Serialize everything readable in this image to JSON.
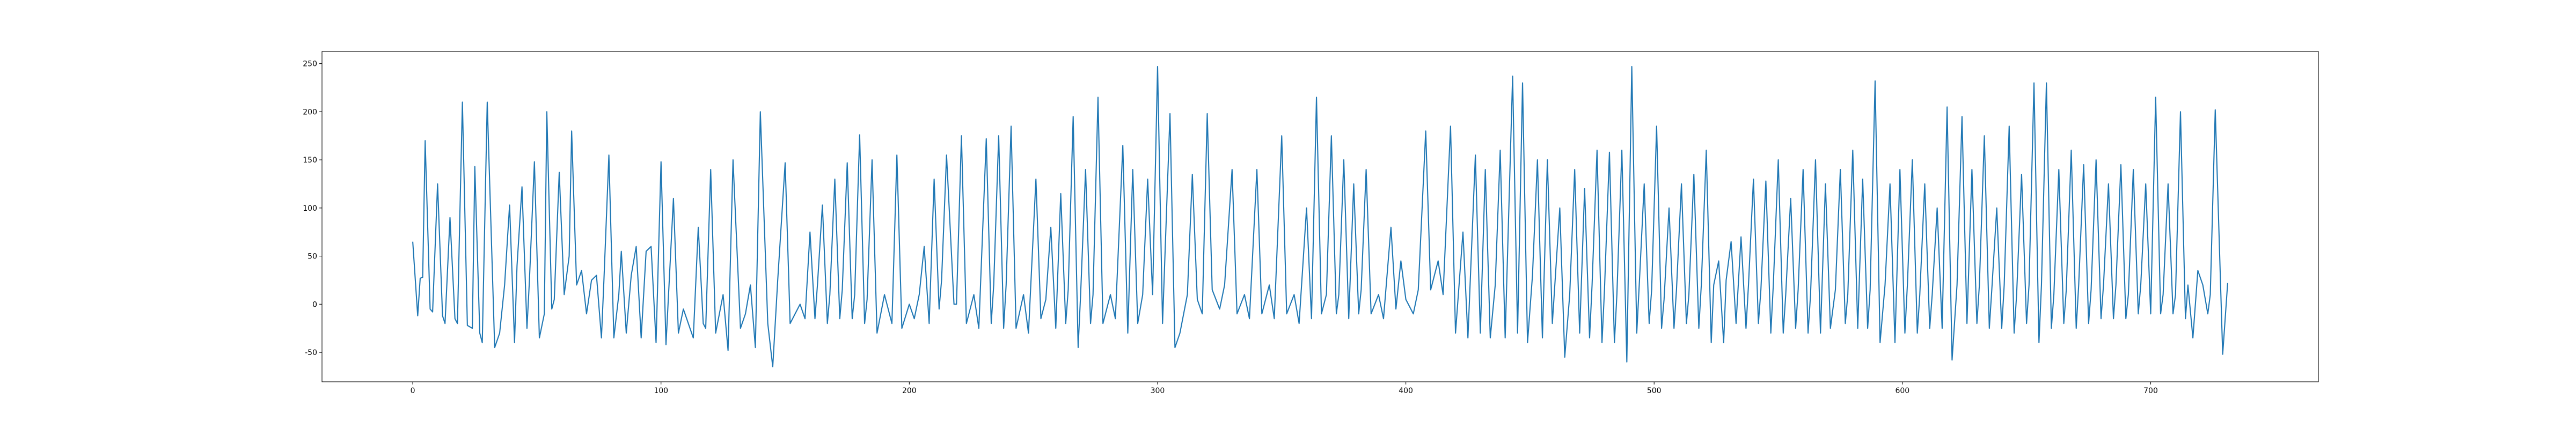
{
  "chart_data": {
    "type": "line",
    "color": "#1f77b4",
    "x": [
      0,
      2,
      3,
      4,
      5,
      7,
      8,
      10,
      12,
      13,
      15,
      17,
      18,
      20,
      22,
      24,
      25,
      27,
      28,
      30,
      33,
      35,
      37,
      39,
      41,
      42,
      44,
      46,
      47,
      49,
      51,
      53,
      54,
      56,
      57,
      59,
      61,
      63,
      64,
      66,
      68,
      70,
      72,
      74,
      76,
      77,
      79,
      81,
      83,
      84,
      86,
      88,
      90,
      92,
      94,
      96,
      98,
      100,
      102,
      105,
      107,
      109,
      111,
      113,
      115,
      117,
      118,
      120,
      122,
      125,
      127,
      129,
      132,
      134,
      136,
      138,
      140,
      143,
      145,
      147,
      150,
      152,
      154,
      156,
      158,
      160,
      162,
      163,
      165,
      167,
      168,
      170,
      172,
      173,
      175,
      177,
      178,
      180,
      182,
      183,
      185,
      187,
      190,
      193,
      195,
      197,
      200,
      202,
      204,
      206,
      208,
      210,
      212,
      213,
      215,
      218,
      219,
      221,
      223,
      226,
      228,
      231,
      233,
      234,
      236,
      238,
      239,
      241,
      243,
      246,
      248,
      251,
      253,
      255,
      257,
      259,
      261,
      263,
      264,
      266,
      268,
      269,
      271,
      273,
      274,
      276,
      278,
      281,
      283,
      286,
      288,
      290,
      292,
      294,
      296,
      298,
      300,
      302,
      305,
      307,
      309,
      312,
      314,
      316,
      318,
      320,
      322,
      325,
      327,
      330,
      332,
      335,
      337,
      340,
      342,
      345,
      347,
      350,
      352,
      355,
      357,
      360,
      362,
      364,
      366,
      368,
      370,
      372,
      373,
      375,
      377,
      379,
      381,
      382,
      384,
      386,
      389,
      391,
      394,
      396,
      398,
      400,
      403,
      405,
      408,
      410,
      413,
      415,
      418,
      420,
      423,
      425,
      428,
      430,
      432,
      434,
      436,
      438,
      440,
      443,
      445,
      447,
      449,
      451,
      453,
      455,
      457,
      459,
      460,
      462,
      464,
      466,
      468,
      470,
      472,
      474,
      475,
      477,
      479,
      480,
      482,
      484,
      485,
      487,
      489,
      491,
      493,
      494,
      496,
      498,
      499,
      501,
      503,
      504,
      506,
      508,
      509,
      511,
      513,
      514,
      516,
      518,
      519,
      521,
      523,
      524,
      526,
      528,
      529,
      531,
      533,
      535,
      537,
      538,
      540,
      542,
      543,
      545,
      547,
      548,
      550,
      552,
      553,
      555,
      557,
      558,
      560,
      562,
      563,
      565,
      567,
      569,
      571,
      573,
      575,
      577,
      578,
      580,
      582,
      584,
      586,
      587,
      589,
      591,
      593,
      595,
      597,
      599,
      601,
      602,
      604,
      606,
      607,
      609,
      611,
      612,
      614,
      616,
      618,
      620,
      622,
      624,
      626,
      628,
      630,
      631,
      633,
      635,
      636,
      638,
      640,
      641,
      643,
      645,
      646,
      648,
      650,
      651,
      653,
      655,
      656,
      658,
      660,
      661,
      663,
      665,
      666,
      668,
      670,
      671,
      673,
      675,
      676,
      678,
      680,
      681,
      683,
      685,
      686,
      688,
      690,
      691,
      693,
      695,
      696,
      698,
      700,
      702,
      704,
      705,
      707,
      709,
      710,
      712,
      714,
      715,
      717,
      719,
      721,
      723,
      724,
      726,
      729,
      731
    ],
    "values": [
      65,
      -12,
      27,
      28,
      170,
      -5,
      -8,
      125,
      -12,
      -20,
      90,
      -15,
      -20,
      210,
      -22,
      -25,
      143,
      -30,
      -40,
      210,
      -45,
      -30,
      20,
      103,
      -40,
      40,
      122,
      -25,
      25,
      148,
      -35,
      -10,
      200,
      -5,
      5,
      137,
      10,
      50,
      180,
      20,
      35,
      -10,
      25,
      30,
      -35,
      25,
      155,
      -35,
      10,
      55,
      -30,
      30,
      60,
      -35,
      55,
      60,
      -40,
      148,
      -42,
      110,
      -30,
      -5,
      -20,
      -35,
      80,
      -20,
      -25,
      140,
      -30,
      10,
      -48,
      150,
      -25,
      -10,
      20,
      -45,
      200,
      -20,
      -65,
      25,
      147,
      -20,
      -10,
      0,
      -15,
      75,
      -15,
      20,
      103,
      -20,
      10,
      130,
      -15,
      15,
      147,
      -15,
      10,
      176,
      -20,
      5,
      150,
      -30,
      10,
      -20,
      155,
      -25,
      0,
      -15,
      10,
      60,
      -20,
      130,
      -5,
      25,
      155,
      0,
      0,
      175,
      -20,
      10,
      -25,
      172,
      -20,
      20,
      175,
      -25,
      20,
      185,
      -25,
      10,
      -30,
      130,
      -15,
      5,
      80,
      -25,
      115,
      -20,
      15,
      195,
      -45,
      10,
      140,
      -20,
      10,
      215,
      -20,
      10,
      -15,
      165,
      -30,
      140,
      -20,
      10,
      130,
      10,
      247,
      -20,
      198,
      -45,
      -30,
      10,
      135,
      5,
      -10,
      198,
      15,
      -5,
      20,
      140,
      -10,
      10,
      -15,
      140,
      -10,
      20,
      -15,
      175,
      -10,
      10,
      -20,
      100,
      -15,
      215,
      -10,
      10,
      175,
      -10,
      10,
      150,
      -15,
      125,
      -10,
      15,
      140,
      -10,
      10,
      -15,
      80,
      -5,
      45,
      5,
      -10,
      15,
      180,
      15,
      45,
      10,
      185,
      -30,
      75,
      -35,
      155,
      -30,
      140,
      -35,
      20,
      160,
      -35,
      237,
      -30,
      230,
      -40,
      30,
      150,
      -35,
      150,
      -20,
      20,
      100,
      -55,
      10,
      140,
      -30,
      120,
      -35,
      20,
      160,
      -40,
      15,
      158,
      -40,
      10,
      160,
      -60,
      247,
      -30,
      20,
      125,
      -20,
      15,
      185,
      -25,
      5,
      100,
      -25,
      15,
      125,
      -20,
      10,
      135,
      -25,
      20,
      160,
      -40,
      20,
      45,
      -40,
      25,
      65,
      -20,
      70,
      -25,
      20,
      130,
      -20,
      15,
      128,
      -30,
      20,
      150,
      -30,
      10,
      110,
      -25,
      15,
      140,
      -30,
      10,
      150,
      -30,
      125,
      -25,
      15,
      140,
      -20,
      10,
      160,
      -25,
      130,
      -25,
      15,
      232,
      -40,
      20,
      125,
      -40,
      140,
      -30,
      20,
      150,
      -30,
      10,
      125,
      -25,
      10,
      100,
      -25,
      205,
      -58,
      20,
      195,
      -20,
      140,
      -20,
      20,
      175,
      -25,
      15,
      100,
      -25,
      20,
      185,
      -30,
      10,
      135,
      -20,
      20,
      230,
      -40,
      20,
      230,
      -25,
      10,
      140,
      -20,
      15,
      160,
      -25,
      20,
      145,
      -20,
      15,
      150,
      -15,
      20,
      125,
      -15,
      20,
      145,
      -15,
      10,
      140,
      -10,
      20,
      125,
      -10,
      215,
      -10,
      10,
      125,
      -10,
      10,
      200,
      -15,
      20,
      -35,
      35,
      20,
      -10,
      10,
      202,
      -52,
      22
    ],
    "xlim": [
      -36.55,
      767.55
    ],
    "ylim": [
      -80.6,
      262.6
    ],
    "xticks": [
      0,
      100,
      200,
      300,
      400,
      500,
      600,
      700
    ],
    "yticks": [
      -50,
      0,
      50,
      100,
      150,
      200,
      250
    ]
  }
}
